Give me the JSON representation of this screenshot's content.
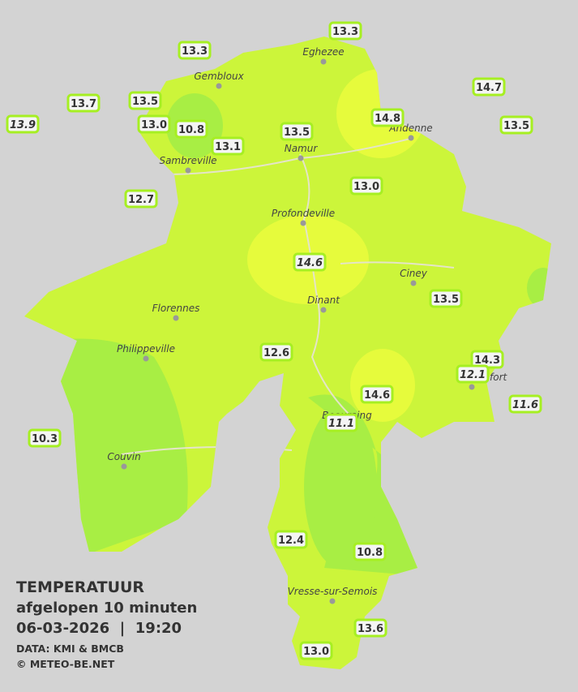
{
  "title": "TEMPERATUUR",
  "subtitle": "afgelopen 10 minuten",
  "datetime": "06-03-2026  |  19:20",
  "source": "DATA: KMI & BMCB",
  "copyright": "© METEO-BE.NET",
  "cities": [
    "Eghezee",
    "Gembloux",
    "Andenne",
    "Namur",
    "Sambreville",
    "Profondeville",
    "Ciney",
    "Dinant",
    "Florennes",
    "Philippeville",
    "Rochefort",
    "Beauraing",
    "Couvin",
    "Vresse-sur-Semois"
  ],
  "stations": [
    {
      "value": 13.3,
      "label": "13.3",
      "italic": false
    },
    {
      "value": 13.3,
      "label": "13.3",
      "italic": false
    },
    {
      "value": 13.5,
      "label": "13.5",
      "italic": false
    },
    {
      "value": 13.7,
      "label": "13.7",
      "italic": false
    },
    {
      "value": 13.9,
      "label": "13.9",
      "italic": true
    },
    {
      "value": 13,
      "label": "13.0",
      "italic": false
    },
    {
      "value": 10.8,
      "label": "10.8",
      "italic": false
    },
    {
      "value": 13.1,
      "label": "13.1",
      "italic": false
    },
    {
      "value": 13.5,
      "label": "13.5",
      "italic": false
    },
    {
      "value": 14.8,
      "label": "14.8",
      "italic": false
    },
    {
      "value": 14.7,
      "label": "14.7",
      "italic": false
    },
    {
      "value": 13.5,
      "label": "13.5",
      "italic": false
    },
    {
      "value": 12.7,
      "label": "12.7",
      "italic": false
    },
    {
      "value": 13,
      "label": "13.0",
      "italic": false
    },
    {
      "value": 14.6,
      "label": "14.6",
      "italic": true
    },
    {
      "value": 13.5,
      "label": "13.5",
      "italic": false
    },
    {
      "value": 12.6,
      "label": "12.6",
      "italic": false
    },
    {
      "value": 14.3,
      "label": "14.3",
      "italic": false
    },
    {
      "value": 12.1,
      "label": "12.1",
      "italic": true
    },
    {
      "value": 14.6,
      "label": "14.6",
      "italic": false
    },
    {
      "value": 11.6,
      "label": "11.6",
      "italic": true
    },
    {
      "value": 11.1,
      "label": "11.1",
      "italic": true
    },
    {
      "value": 10.3,
      "label": "10.3",
      "italic": false
    },
    {
      "value": 12.4,
      "label": "12.4",
      "italic": false
    },
    {
      "value": 10.8,
      "label": "10.8",
      "italic": false
    },
    {
      "value": 13.6,
      "label": "13.6",
      "italic": false
    },
    {
      "value": 13,
      "label": "13.0",
      "italic": false
    }
  ]
}
